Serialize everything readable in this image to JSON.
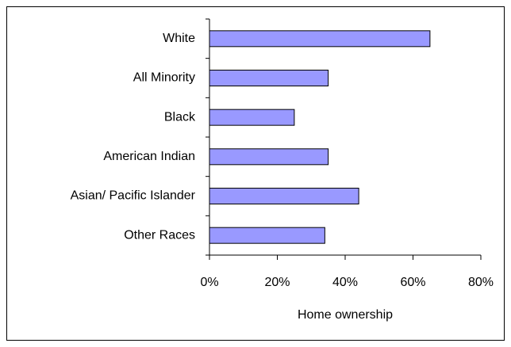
{
  "chart_data": {
    "type": "hbar",
    "categories": [
      "White",
      "All Minority",
      "Black",
      "American Indian",
      "Asian/ Pacific Islander",
      "Other Races"
    ],
    "values": [
      65,
      35,
      25,
      35,
      44,
      34
    ],
    "color": "#9999ff",
    "xlabel": "Home ownership",
    "xlim": [
      0,
      80
    ],
    "xticks": [
      {
        "value": 0,
        "label": "0%"
      },
      {
        "value": 20,
        "label": "20%"
      },
      {
        "value": 40,
        "label": "40%"
      },
      {
        "value": 60,
        "label": "60%"
      },
      {
        "value": 80,
        "label": "80%"
      }
    ]
  }
}
